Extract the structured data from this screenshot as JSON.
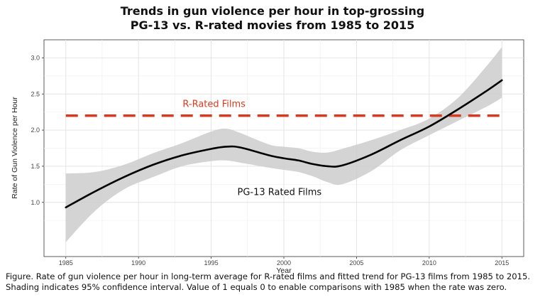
{
  "chart_data": {
    "type": "line",
    "title": [
      "Trends in gun violence per hour in top-grossing",
      "PG-13 vs. R-rated movies from 1985 to 2015"
    ],
    "xlabel": "Year",
    "ylabel": "Rate of Gun Violence per Hour",
    "xlim": [
      1983.5,
      2016.5
    ],
    "ylim": [
      0.25,
      3.25
    ],
    "x_ticks": [
      1985,
      1990,
      1995,
      2000,
      2005,
      2010,
      2015
    ],
    "y_ticks": [
      "1.0",
      "1.5",
      "2.0",
      "2.5",
      "3.0"
    ],
    "grid": true,
    "series": [
      {
        "name": "PG-13 Rated Films",
        "color": "#000000",
        "x": [
          1985,
          1987,
          1989,
          1991,
          1993,
          1995,
          1996,
          1997,
          1999,
          2000,
          2001,
          2002,
          2003,
          2004,
          2006,
          2008,
          2010,
          2012,
          2014,
          2015
        ],
        "y": [
          0.93,
          1.15,
          1.35,
          1.52,
          1.65,
          1.74,
          1.77,
          1.76,
          1.65,
          1.61,
          1.58,
          1.53,
          1.5,
          1.51,
          1.66,
          1.86,
          2.05,
          2.29,
          2.55,
          2.69
        ],
        "ci_lower": [
          0.45,
          0.88,
          1.18,
          1.35,
          1.5,
          1.57,
          1.58,
          1.55,
          1.48,
          1.45,
          1.42,
          1.36,
          1.28,
          1.25,
          1.43,
          1.72,
          1.93,
          2.13,
          2.33,
          2.45
        ],
        "ci_upper": [
          1.4,
          1.42,
          1.52,
          1.68,
          1.82,
          1.98,
          2.02,
          1.96,
          1.8,
          1.77,
          1.75,
          1.7,
          1.69,
          1.74,
          1.86,
          2.0,
          2.16,
          2.45,
          2.9,
          3.15
        ]
      },
      {
        "name": "R-Rated Films",
        "color": "#d93a1f",
        "style": "dashed",
        "x": [
          1985,
          2015
        ],
        "y": [
          2.2,
          2.2
        ]
      }
    ],
    "annotations": [
      {
        "text": "R-Rated Films",
        "x": 1995.2,
        "y": 2.32,
        "series": 1
      },
      {
        "text": "PG-13 Rated Films",
        "x": 1999.7,
        "y": 1.1,
        "series": 0
      }
    ],
    "caption": "Figure. Rate of gun violence per hour in long-term average for R-rated films and fitted trend for PG-13 films from 1985 to 2015.  Shading indicates 95% confidence interval. Value of 1 equals 0 to enable comparisons with 1985 when the rate was zero."
  }
}
